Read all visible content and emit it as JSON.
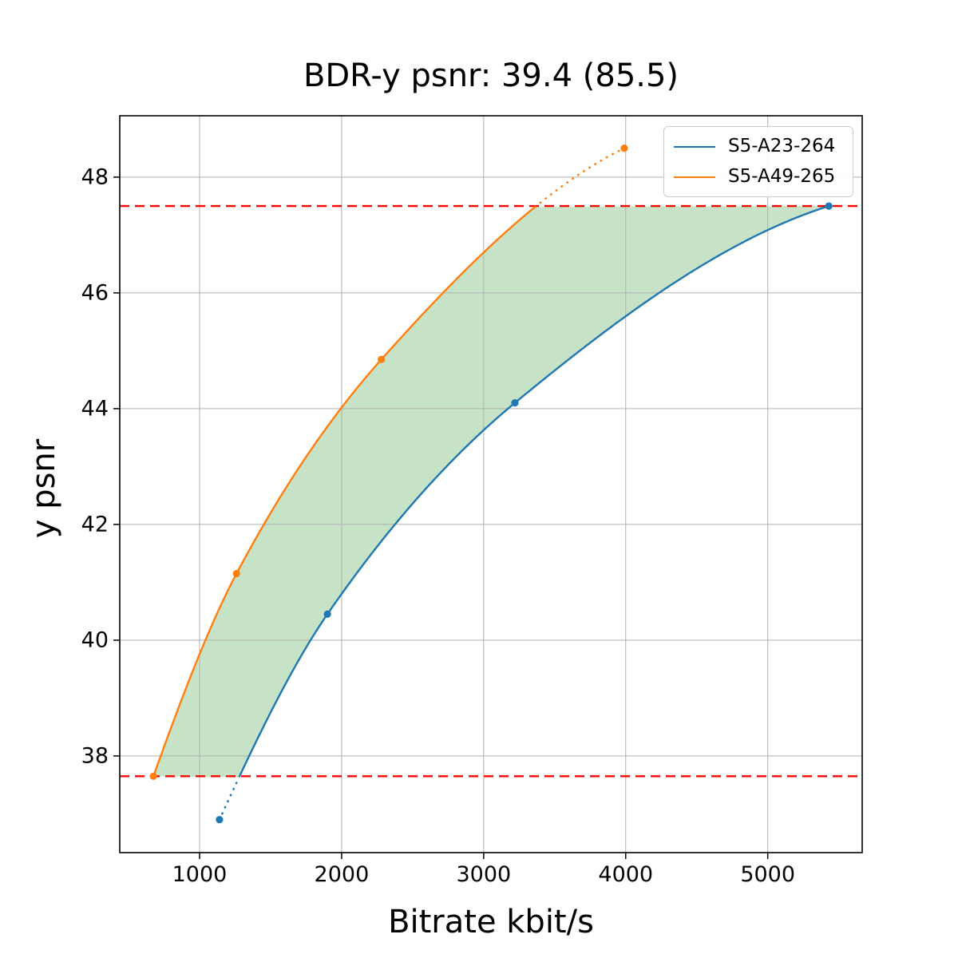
{
  "chart_data": {
    "type": "line",
    "title": "BDR-y psnr: 39.4 (85.5)",
    "xlabel": "Bitrate kbit/s",
    "ylabel": "y psnr",
    "xlim": [
      438,
      5665
    ],
    "ylim": [
      36.33,
      49.06
    ],
    "xticks": [
      1000,
      2000,
      3000,
      4000,
      5000
    ],
    "yticks": [
      38,
      40,
      42,
      44,
      46,
      48
    ],
    "grid": true,
    "legend_position": "upper right",
    "series": [
      {
        "name": "S5-A23-264",
        "color": "#1f77b4",
        "x": [
          1140,
          1900,
          3220,
          5430
        ],
        "y": [
          36.9,
          40.45,
          44.1,
          47.5
        ]
      },
      {
        "name": "S5-A49-265",
        "color": "#ff7f0e",
        "x": [
          675,
          1260,
          2280,
          3990
        ],
        "y": [
          37.65,
          41.15,
          44.85,
          48.5
        ]
      }
    ],
    "overlap_band": {
      "low": 37.65,
      "high": 47.5,
      "line_color": "#ff0000",
      "line_style": "dashed",
      "fill_color": "rgba(0,128,0,0.22)"
    },
    "style_note": "curves solid inside psnr overlap band, dotted outside; area between curves shaded"
  },
  "colors": {
    "grid": "#b0b0b0",
    "spine": "#000000",
    "background": "#ffffff"
  }
}
